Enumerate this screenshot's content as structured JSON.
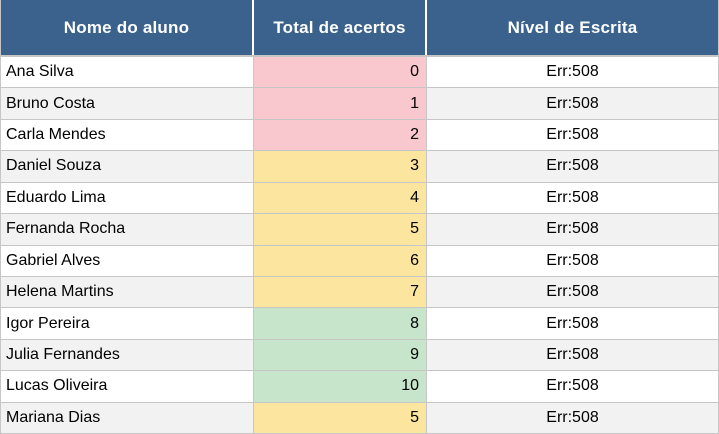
{
  "header": {
    "columns": [
      "Nome do aluno",
      "Total de acertos",
      "Nível de Escrita"
    ]
  },
  "palette": {
    "header_bg": "#3A628D",
    "header_text": "#FFFFFF",
    "score_low_bg": "#F9C8CE",
    "score_mid_bg": "#FBE59F",
    "score_high_bg": "#C7E5CB",
    "row_alt_bg": "#F2F2F2",
    "grid_line": "#C6C6C6"
  },
  "rows": [
    {
      "name": "Ana Silva",
      "score": "0",
      "band": "low",
      "level": "Err:508"
    },
    {
      "name": "Bruno Costa",
      "score": "1",
      "band": "low",
      "level": "Err:508"
    },
    {
      "name": "Carla Mendes",
      "score": "2",
      "band": "low",
      "level": "Err:508"
    },
    {
      "name": "Daniel Souza",
      "score": "3",
      "band": "mid",
      "level": "Err:508"
    },
    {
      "name": "Eduardo Lima",
      "score": "4",
      "band": "mid",
      "level": "Err:508"
    },
    {
      "name": "Fernanda Rocha",
      "score": "5",
      "band": "mid",
      "level": "Err:508"
    },
    {
      "name": "Gabriel Alves",
      "score": "6",
      "band": "mid",
      "level": "Err:508"
    },
    {
      "name": "Helena Martins",
      "score": "7",
      "band": "mid",
      "level": "Err:508"
    },
    {
      "name": "Igor Pereira",
      "score": "8",
      "band": "high",
      "level": "Err:508"
    },
    {
      "name": "Julia Fernandes",
      "score": "9",
      "band": "high",
      "level": "Err:508"
    },
    {
      "name": "Lucas Oliveira",
      "score": "10",
      "band": "high",
      "level": "Err:508"
    },
    {
      "name": "Mariana Dias",
      "score": "5",
      "band": "mid",
      "level": "Err:508"
    }
  ]
}
